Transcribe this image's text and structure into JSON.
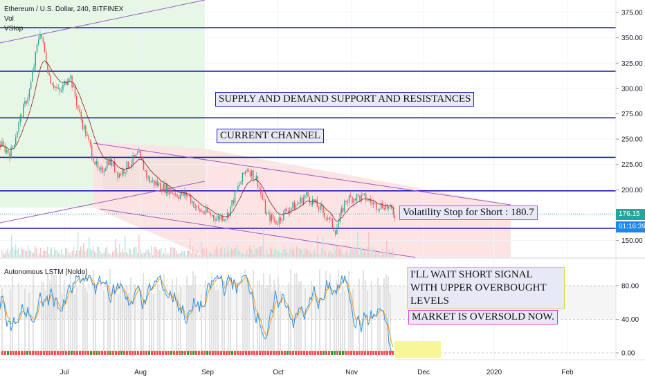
{
  "header": {
    "title": "Ethereum / U.S. Dollar, 240, BITFINEX",
    "vol": "Vol",
    "vstop": "VStop"
  },
  "indicator": {
    "title": "Autonomous LSTM [Noldo]"
  },
  "annotations": {
    "supply_demand": "SUPPLY AND DEMAND SUPPORT AND RESISTANCES",
    "current_channel": "CURRENT CHANNEL",
    "volatility_stop": "Volatility Stop for Short : 180.7",
    "wait_short": "I'LL WAIT SHORT SIGNAL WITH UPPER OVERBOUGHT LEVELS",
    "oversold": "MARKET IS OVERSOLD NOW."
  },
  "price_tags": {
    "last_price": "176.15",
    "countdown": "01:16:39"
  },
  "colors": {
    "sr_lines": "#1a1ab5",
    "channel": "#9c5cc4",
    "candle_up": "#26a69a",
    "candle_down": "#ef5350",
    "lstm_blue": "#2d8fe0",
    "lstm_orange": "#f0a020",
    "green_zone": "#e6f7e6",
    "red_zone": "#fce4e4",
    "yellow_box": "#f7f79a",
    "price_tag": "#26a69a",
    "countdown_tag": "#1e88e5"
  },
  "chart_data": [
    {
      "type": "line",
      "name": "price",
      "title": "Ethereum / U.S. Dollar, 240, BITFINEX",
      "x": [
        "Jun 10",
        "Jun 15",
        "Jun 20",
        "Jun 25",
        "Jun 27",
        "Jul 1",
        "Jul 5",
        "Jul 8",
        "Jul 10",
        "Jul 13",
        "Jul 16",
        "Jul 20",
        "Jul 25",
        "Jul 30",
        "Aug 5",
        "Aug 7",
        "Aug 10",
        "Aug 15",
        "Aug 20",
        "Aug 25",
        "Aug 30",
        "Sep 1",
        "Sep 5",
        "Sep 10",
        "Sep 15",
        "Sep 19",
        "Sep 21",
        "Sep 24",
        "Sep 26",
        "Oct 1",
        "Oct 5",
        "Oct 10",
        "Oct 15",
        "Oct 20",
        "Oct 23",
        "Oct 26",
        "Nov 1",
        "Nov 7",
        "Nov 12",
        "Nov 16",
        "Nov 20"
      ],
      "y": [
        245,
        235,
        270,
        300,
        358,
        310,
        295,
        315,
        275,
        245,
        215,
        230,
        215,
        225,
        235,
        210,
        205,
        200,
        195,
        195,
        180,
        177,
        172,
        175,
        200,
        222,
        210,
        175,
        168,
        180,
        185,
        195,
        185,
        175,
        160,
        190,
        193,
        192,
        185,
        185,
        176
      ],
      "x_ticks": [
        "Jul",
        "Aug",
        "Sep",
        "Oct",
        "Nov",
        "Dec",
        "2020",
        "Feb"
      ],
      "y_ticks": [
        "375.00",
        "350.00",
        "325.00",
        "300.00",
        "275.00",
        "250.00",
        "225.00",
        "200.00",
        "175.00",
        "150.00"
      ],
      "ylim": [
        130,
        385
      ],
      "horizontal_levels": [
        360,
        317,
        271,
        232,
        199,
        162
      ],
      "last_price": 176.15
    },
    {
      "type": "line",
      "name": "Autonomous LSTM [Noldo]",
      "title": "Autonomous LSTM [Noldo]",
      "y_ticks": [
        "80.00",
        "40.00",
        "0.00"
      ],
      "ylim": [
        -8,
        100
      ],
      "levels": [
        80,
        40,
        0
      ],
      "current_value": 0
    }
  ]
}
